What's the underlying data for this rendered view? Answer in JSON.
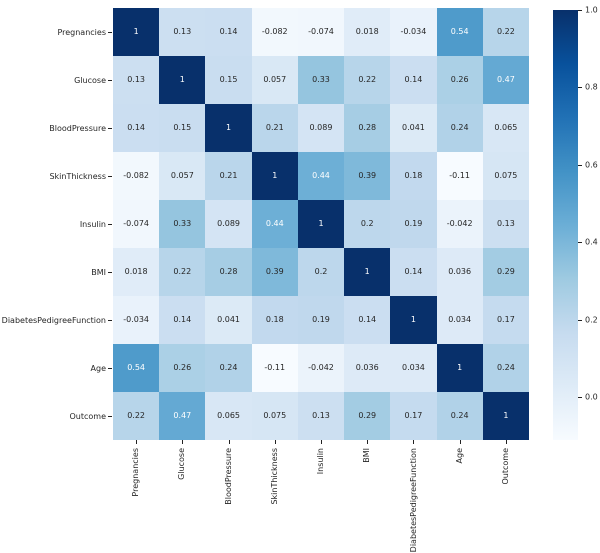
{
  "colors": {
    "background": "#ffffff",
    "annot_dark": "#262626",
    "annot_light": "#ffffff",
    "tick_color": "#222222",
    "cmap_min": "#f7fbff",
    "cmap_max": "#08306b"
  },
  "chart_data": {
    "type": "heatmap",
    "colormap": "Blues",
    "annotated": true,
    "vmin": -0.11,
    "vmax": 1.0,
    "categories": [
      "Pregnancies",
      "Glucose",
      "BloodPressure",
      "SkinThickness",
      "Insulin",
      "BMI",
      "DiabetesPedigreeFunction",
      "Age",
      "Outcome"
    ],
    "matrix": [
      [
        "1",
        "0.13",
        "0.14",
        "-0.082",
        "-0.074",
        "0.018",
        "-0.034",
        "0.54",
        "0.22"
      ],
      [
        "0.13",
        "1",
        "0.15",
        "0.057",
        "0.33",
        "0.22",
        "0.14",
        "0.26",
        "0.47"
      ],
      [
        "0.14",
        "0.15",
        "1",
        "0.21",
        "0.089",
        "0.28",
        "0.041",
        "0.24",
        "0.065"
      ],
      [
        "-0.082",
        "0.057",
        "0.21",
        "1",
        "0.44",
        "0.39",
        "0.18",
        "-0.11",
        "0.075"
      ],
      [
        "-0.074",
        "0.33",
        "0.089",
        "0.44",
        "1",
        "0.2",
        "0.19",
        "-0.042",
        "0.13"
      ],
      [
        "0.018",
        "0.22",
        "0.28",
        "0.39",
        "0.2",
        "1",
        "0.14",
        "0.036",
        "0.29"
      ],
      [
        "-0.034",
        "0.14",
        "0.041",
        "0.18",
        "0.19",
        "0.14",
        "1",
        "0.034",
        "0.17"
      ],
      [
        "0.54",
        "0.26",
        "0.24",
        "-0.11",
        "-0.042",
        "0.036",
        "0.034",
        "1",
        "0.24"
      ],
      [
        "0.22",
        "0.47",
        "0.065",
        "0.075",
        "0.13",
        "0.29",
        "0.17",
        "0.24",
        "1"
      ]
    ],
    "x_tick_rotation": 90,
    "legend_position": "none",
    "grid": false,
    "colorbar": {
      "position": "right",
      "tick_labels": [
        "1.0",
        "0.8",
        "0.6",
        "0.4",
        "0.2",
        "0.0"
      ],
      "tick_values": [
        1.0,
        0.8,
        0.6,
        0.4,
        0.2,
        0.0
      ]
    }
  }
}
